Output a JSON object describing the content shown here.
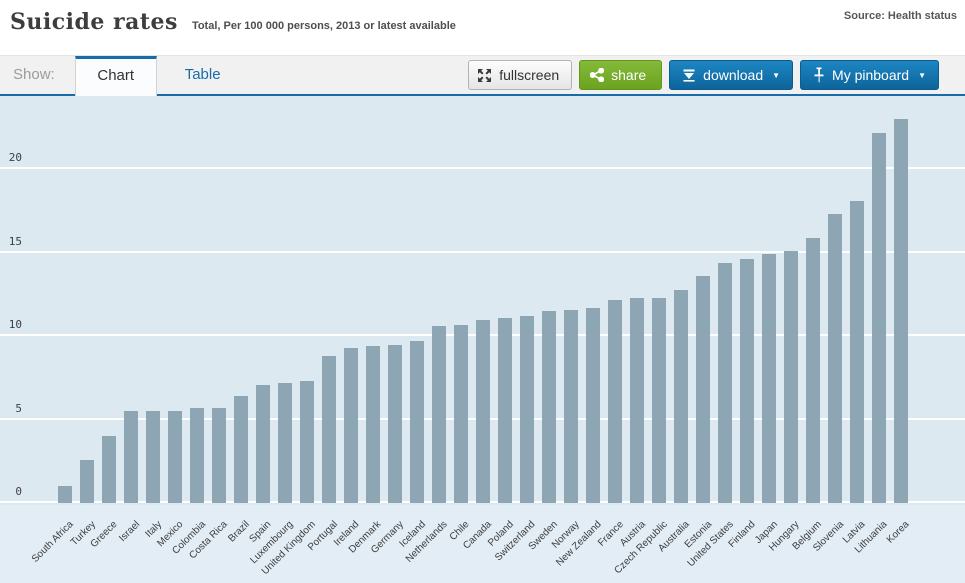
{
  "header": {
    "title": "Suicide rates",
    "subtitle": "Total, Per 100 000 persons, 2013 or latest available",
    "source": "Source: Health status"
  },
  "toolbar": {
    "show_label": "Show:",
    "tabs": [
      {
        "label": "Chart",
        "active": true
      },
      {
        "label": "Table",
        "active": false
      }
    ],
    "buttons": {
      "fullscreen": "fullscreen",
      "share": "share",
      "download": "download",
      "pinboard": "My pinboard"
    }
  },
  "colors": {
    "accent_blue": "#1a6ca9",
    "button_blue": "#14679d",
    "button_green": "#74ab2c",
    "bar_color": "#8ea5b4",
    "chart_background": "#dce9f1"
  },
  "chart_data": {
    "type": "bar",
    "title": "Suicide rates",
    "subtitle": "Total, Per 100 000 persons, 2013 or latest available",
    "xlabel": "",
    "ylabel": "Per 100 000 persons",
    "ylim": [
      0,
      24.4
    ],
    "yticks": [
      0,
      5,
      10,
      15,
      20
    ],
    "grid": true,
    "legend": "none",
    "categories": [
      "South Africa",
      "Turkey",
      "Greece",
      "Israel",
      "Italy",
      "Mexico",
      "Colombia",
      "Costa Rica",
      "Brazil",
      "Spain",
      "Luxembourg",
      "United Kingdom",
      "Portugal",
      "Ireland",
      "Denmark",
      "Germany",
      "Iceland",
      "Netherlands",
      "Chile",
      "Canada",
      "Poland",
      "Switzerland",
      "Sweden",
      "Norway",
      "New Zealand",
      "France",
      "Austria",
      "Czech Republic",
      "Australia",
      "Estonia",
      "United States",
      "Finland",
      "Japan",
      "Hungary",
      "Belgium",
      "Slovenia",
      "Latvia",
      "Lithuania",
      "Korea"
    ],
    "values": [
      1.0,
      2.6,
      4.0,
      5.5,
      5.5,
      5.5,
      5.7,
      5.7,
      6.4,
      7.1,
      7.2,
      7.3,
      8.8,
      9.3,
      9.4,
      9.5,
      9.7,
      10.6,
      10.7,
      11.0,
      11.1,
      11.2,
      11.5,
      11.6,
      11.7,
      12.2,
      12.3,
      12.3,
      12.8,
      13.6,
      14.4,
      14.6,
      14.9,
      15.1,
      15.9,
      17.3,
      18.1,
      22.2,
      23.0
    ]
  }
}
